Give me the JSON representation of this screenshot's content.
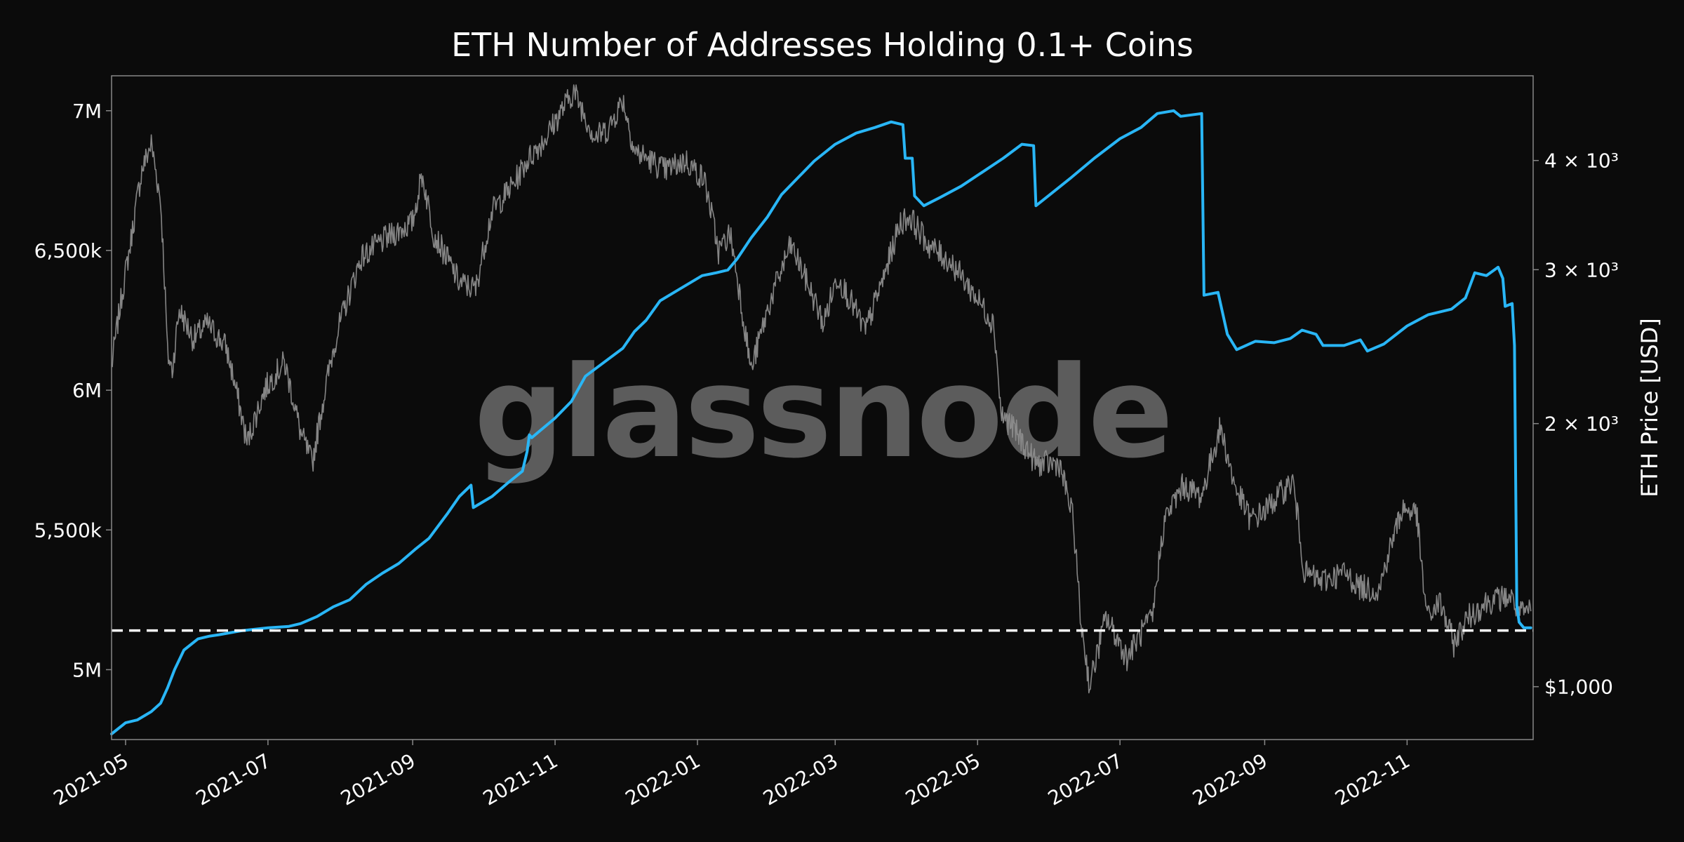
{
  "chart_data": {
    "type": "line",
    "title": "ETH Number of Addresses Holding 0.1+ Coins",
    "watermark": "glassnode",
    "xlabel": "",
    "xrange": [
      "2021-04-25",
      "2022-12-25"
    ],
    "x_tick_labels": [
      "2021-05",
      "2021-07",
      "2021-09",
      "2021-11",
      "2022-01",
      "2022-03",
      "2022-05",
      "2022-07",
      "2022-09",
      "2022-11"
    ],
    "y_left": {
      "label": "",
      "range": [
        4750000,
        7125000
      ],
      "ticks": [
        5000000,
        5500000,
        6000000,
        6500000,
        7000000
      ],
      "tick_labels": [
        "5M",
        "5,500k",
        "6M",
        "6,500k",
        "7M"
      ]
    },
    "y_right": {
      "label": "ETH Price [USD]",
      "scale": "log",
      "range": [
        870,
        5000
      ],
      "ticks": [
        1000,
        2000,
        3000,
        4000
      ],
      "tick_labels": [
        "$1,000",
        "2 × 10³",
        "3 × 10³",
        "4 × 10³"
      ]
    },
    "reference_line": {
      "value": 5140000,
      "style": "dashed",
      "color": "#ffffff"
    },
    "colors": {
      "background": "#0b0b0b",
      "addresses": "#29b6f6",
      "price": "#8c8c8c",
      "frame": "#888888"
    },
    "series": [
      {
        "name": "",
        "axis": "left",
        "color": "#29b6f6",
        "points": [
          [
            "2021-04-25",
            4770000
          ],
          [
            "2021-05-01",
            4810000
          ],
          [
            "2021-05-06",
            4820000
          ],
          [
            "2021-05-12",
            4850000
          ],
          [
            "2021-05-16",
            4880000
          ],
          [
            "2021-05-19",
            4935000
          ],
          [
            "2021-05-22",
            5000000
          ],
          [
            "2021-05-26",
            5070000
          ],
          [
            "2021-06-01",
            5110000
          ],
          [
            "2021-06-06",
            5120000
          ],
          [
            "2021-06-10",
            5125000
          ],
          [
            "2021-06-20",
            5140000
          ],
          [
            "2021-07-01",
            5150000
          ],
          [
            "2021-07-10",
            5155000
          ],
          [
            "2021-07-15",
            5165000
          ],
          [
            "2021-07-22",
            5190000
          ],
          [
            "2021-07-29",
            5225000
          ],
          [
            "2021-08-05",
            5250000
          ],
          [
            "2021-08-12",
            5305000
          ],
          [
            "2021-08-19",
            5345000
          ],
          [
            "2021-08-26",
            5380000
          ],
          [
            "2021-09-02",
            5430000
          ],
          [
            "2021-09-08",
            5470000
          ],
          [
            "2021-09-16",
            5560000
          ],
          [
            "2021-09-21",
            5620000
          ],
          [
            "2021-09-26",
            5660000
          ],
          [
            "2021-09-27",
            5580000
          ],
          [
            "2021-10-05",
            5620000
          ],
          [
            "2021-10-12",
            5670000
          ],
          [
            "2021-10-18",
            5710000
          ],
          [
            "2021-10-20",
            5780000
          ],
          [
            "2021-10-21",
            5840000
          ],
          [
            "2021-10-22",
            5830000
          ],
          [
            "2021-11-01",
            5900000
          ],
          [
            "2021-11-08",
            5960000
          ],
          [
            "2021-11-14",
            6050000
          ],
          [
            "2021-11-22",
            6100000
          ],
          [
            "2021-11-30",
            6150000
          ],
          [
            "2021-12-05",
            6210000
          ],
          [
            "2021-12-10",
            6250000
          ],
          [
            "2021-12-16",
            6320000
          ],
          [
            "2021-12-24",
            6360000
          ],
          [
            "2022-01-03",
            6410000
          ],
          [
            "2022-01-09",
            6420000
          ],
          [
            "2022-01-14",
            6430000
          ],
          [
            "2022-01-18",
            6470000
          ],
          [
            "2022-01-24",
            6545000
          ],
          [
            "2022-01-31",
            6620000
          ],
          [
            "2022-02-06",
            6700000
          ],
          [
            "2022-02-13",
            6760000
          ],
          [
            "2022-02-20",
            6820000
          ],
          [
            "2022-03-01",
            6880000
          ],
          [
            "2022-03-10",
            6920000
          ],
          [
            "2022-03-18",
            6940000
          ],
          [
            "2022-03-25",
            6960000
          ],
          [
            "2022-03-30",
            6950000
          ],
          [
            "2022-03-31",
            6830000
          ],
          [
            "2022-04-03",
            6830000
          ],
          [
            "2022-04-04",
            6695000
          ],
          [
            "2022-04-08",
            6660000
          ],
          [
            "2022-04-15",
            6690000
          ],
          [
            "2022-04-24",
            6730000
          ],
          [
            "2022-05-03",
            6780000
          ],
          [
            "2022-05-12",
            6830000
          ],
          [
            "2022-05-20",
            6880000
          ],
          [
            "2022-05-25",
            6875000
          ],
          [
            "2022-05-26",
            6660000
          ],
          [
            "2022-06-01",
            6700000
          ],
          [
            "2022-06-10",
            6760000
          ],
          [
            "2022-06-20",
            6830000
          ],
          [
            "2022-07-01",
            6900000
          ],
          [
            "2022-07-10",
            6940000
          ],
          [
            "2022-07-17",
            6990000
          ],
          [
            "2022-07-24",
            7000000
          ],
          [
            "2022-07-27",
            6980000
          ],
          [
            "2022-08-05",
            6990000
          ],
          [
            "2022-08-06",
            6340000
          ],
          [
            "2022-08-12",
            6350000
          ],
          [
            "2022-08-16",
            6200000
          ],
          [
            "2022-08-20",
            6145000
          ],
          [
            "2022-08-28",
            6175000
          ],
          [
            "2022-09-05",
            6170000
          ],
          [
            "2022-09-12",
            6185000
          ],
          [
            "2022-09-17",
            6215000
          ],
          [
            "2022-09-23",
            6200000
          ],
          [
            "2022-09-26",
            6160000
          ],
          [
            "2022-10-05",
            6160000
          ],
          [
            "2022-10-12",
            6180000
          ],
          [
            "2022-10-15",
            6140000
          ],
          [
            "2022-10-22",
            6165000
          ],
          [
            "2022-11-01",
            6230000
          ],
          [
            "2022-11-10",
            6270000
          ],
          [
            "2022-11-20",
            6290000
          ],
          [
            "2022-11-26",
            6330000
          ],
          [
            "2022-11-30",
            6420000
          ],
          [
            "2022-12-05",
            6410000
          ],
          [
            "2022-12-10",
            6440000
          ],
          [
            "2022-12-12",
            6400000
          ],
          [
            "2022-12-13",
            6300000
          ],
          [
            "2022-12-16",
            6310000
          ],
          [
            "2022-12-17",
            6160000
          ],
          [
            "2022-12-18",
            5230000
          ],
          [
            "2022-12-19",
            5170000
          ],
          [
            "2022-12-21",
            5150000
          ],
          [
            "2022-12-24",
            5150000
          ]
        ]
      },
      {
        "name": "ETH Price [USD]",
        "axis": "right",
        "color": "#8c8c8c",
        "points": [
          [
            "2021-04-25",
            2320
          ],
          [
            "2021-05-03",
            3200
          ],
          [
            "2021-05-08",
            3900
          ],
          [
            "2021-05-12",
            4180
          ],
          [
            "2021-05-16",
            3590
          ],
          [
            "2021-05-19",
            2400
          ],
          [
            "2021-05-21",
            2300
          ],
          [
            "2021-05-24",
            2700
          ],
          [
            "2021-05-30",
            2500
          ],
          [
            "2021-06-05",
            2600
          ],
          [
            "2021-06-13",
            2450
          ],
          [
            "2021-06-22",
            1900
          ],
          [
            "2021-06-30",
            2200
          ],
          [
            "2021-07-08",
            2350
          ],
          [
            "2021-07-15",
            1950
          ],
          [
            "2021-07-20",
            1800
          ],
          [
            "2021-07-30",
            2500
          ],
          [
            "2021-08-10",
            3100
          ],
          [
            "2021-08-20",
            3250
          ],
          [
            "2021-09-01",
            3400
          ],
          [
            "2021-09-05",
            3850
          ],
          [
            "2021-09-10",
            3300
          ],
          [
            "2021-09-21",
            2900
          ],
          [
            "2021-09-28",
            2850
          ],
          [
            "2021-10-05",
            3500
          ],
          [
            "2021-10-14",
            3750
          ],
          [
            "2021-10-20",
            4000
          ],
          [
            "2021-10-28",
            4250
          ],
          [
            "2021-11-09",
            4800
          ],
          [
            "2021-11-18",
            4250
          ],
          [
            "2021-11-24",
            4350
          ],
          [
            "2021-11-30",
            4700
          ],
          [
            "2021-12-05",
            4100
          ],
          [
            "2021-12-12",
            4000
          ],
          [
            "2021-12-18",
            3900
          ],
          [
            "2021-12-27",
            4000
          ],
          [
            "2022-01-04",
            3800
          ],
          [
            "2022-01-10",
            3150
          ],
          [
            "2022-01-15",
            3300
          ],
          [
            "2022-01-21",
            2600
          ],
          [
            "2022-01-24",
            2300
          ],
          [
            "2022-02-01",
            2750
          ],
          [
            "2022-02-10",
            3200
          ],
          [
            "2022-02-17",
            2900
          ],
          [
            "2022-02-24",
            2600
          ],
          [
            "2022-03-02",
            2950
          ],
          [
            "2022-03-14",
            2550
          ],
          [
            "2022-03-22",
            2950
          ],
          [
            "2022-03-29",
            3400
          ],
          [
            "2022-04-02",
            3450
          ],
          [
            "2022-04-10",
            3200
          ],
          [
            "2022-04-20",
            3050
          ],
          [
            "2022-04-30",
            2800
          ],
          [
            "2022-05-08",
            2600
          ],
          [
            "2022-05-11",
            2050
          ],
          [
            "2022-05-15",
            2000
          ],
          [
            "2022-05-26",
            1800
          ],
          [
            "2022-06-05",
            1800
          ],
          [
            "2022-06-11",
            1550
          ],
          [
            "2022-06-14",
            1200
          ],
          [
            "2022-06-18",
            1000
          ],
          [
            "2022-06-25",
            1200
          ],
          [
            "2022-07-04",
            1080
          ],
          [
            "2022-07-10",
            1150
          ],
          [
            "2022-07-15",
            1200
          ],
          [
            "2022-07-20",
            1550
          ],
          [
            "2022-07-28",
            1700
          ],
          [
            "2022-08-05",
            1650
          ],
          [
            "2022-08-13",
            1980
          ],
          [
            "2022-08-19",
            1700
          ],
          [
            "2022-08-26",
            1550
          ],
          [
            "2022-09-01",
            1590
          ],
          [
            "2022-09-13",
            1720
          ],
          [
            "2022-09-18",
            1350
          ],
          [
            "2022-09-25",
            1320
          ],
          [
            "2022-10-05",
            1350
          ],
          [
            "2022-10-12",
            1300
          ],
          [
            "2022-10-20",
            1290
          ],
          [
            "2022-10-25",
            1450
          ],
          [
            "2022-10-30",
            1600
          ],
          [
            "2022-11-05",
            1580
          ],
          [
            "2022-11-08",
            1300
          ],
          [
            "2022-11-10",
            1200
          ],
          [
            "2022-11-15",
            1250
          ],
          [
            "2022-11-21",
            1120
          ],
          [
            "2022-11-27",
            1200
          ],
          [
            "2022-12-05",
            1250
          ],
          [
            "2022-12-15",
            1270
          ],
          [
            "2022-12-20",
            1210
          ],
          [
            "2022-12-24",
            1220
          ]
        ]
      }
    ]
  }
}
